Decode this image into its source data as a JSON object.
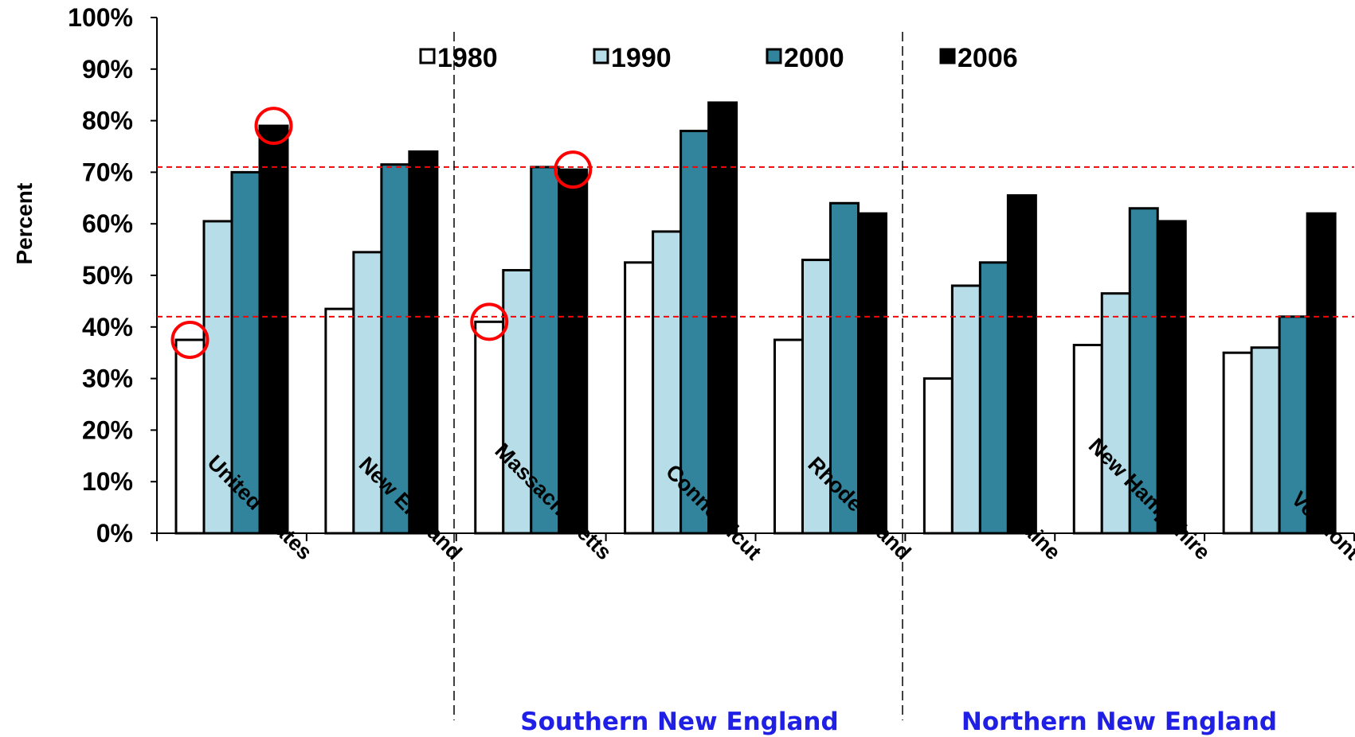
{
  "chart_data": {
    "type": "bar",
    "ylabel": "Percent",
    "ylim": [
      0,
      1
    ],
    "y_ticks": [
      "0%",
      "10%",
      "20%",
      "30%",
      "40%",
      "50%",
      "60%",
      "70%",
      "80%",
      "90%",
      "100%"
    ],
    "categories": [
      "United States",
      "New England",
      "Massachusetts",
      "Connecticut",
      "Rhode Island",
      "Maine",
      "New Hampshire",
      "Vermont"
    ],
    "series": [
      {
        "name": "1980",
        "color": "#ffffff",
        "values": [
          0.375,
          0.435,
          0.41,
          0.525,
          0.375,
          0.3,
          0.365,
          0.35
        ]
      },
      {
        "name": "1990",
        "color": "#b7dee8",
        "values": [
          0.605,
          0.545,
          0.51,
          0.585,
          0.53,
          0.48,
          0.465,
          0.36
        ]
      },
      {
        "name": "2000",
        "color": "#31849b",
        "values": [
          0.7,
          0.715,
          0.71,
          0.78,
          0.64,
          0.525,
          0.63,
          0.42
        ]
      },
      {
        "name": "2006",
        "color": "#000000",
        "values": [
          0.79,
          0.74,
          0.705,
          0.835,
          0.62,
          0.655,
          0.605,
          0.62
        ]
      }
    ],
    "reference_lines": [
      0.71,
      0.42
    ],
    "reference_line_color": "#ff0000",
    "group_labels": [
      "Southern New England",
      "Northern New England"
    ],
    "group_label_color": "#1f1fe6",
    "highlight_color": "#ff0000",
    "highlights": [
      {
        "category": "United States",
        "series": "1980"
      },
      {
        "category": "United States",
        "series": "2006"
      },
      {
        "category": "Massachusetts",
        "series": "1980"
      },
      {
        "category": "Massachusetts",
        "series": "2006"
      }
    ],
    "legend_position": "top",
    "grid": false
  }
}
